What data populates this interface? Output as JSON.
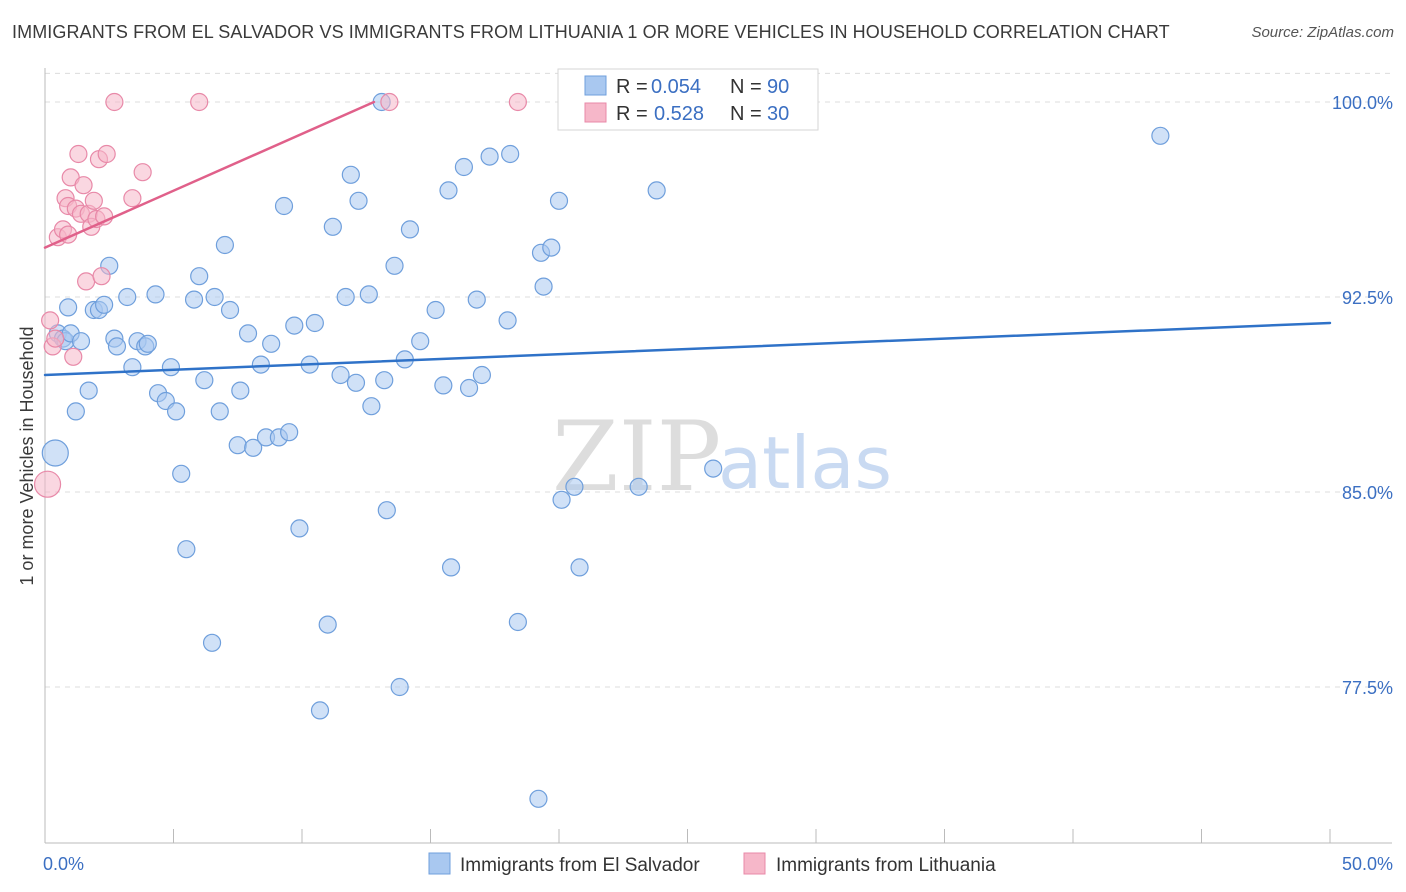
{
  "title": "IMMIGRANTS FROM EL SALVADOR VS IMMIGRANTS FROM LITHUANIA 1 OR MORE VEHICLES IN HOUSEHOLD CORRELATION CHART",
  "source": "Source: ZipAtlas.com",
  "watermark": {
    "zip": "ZIP",
    "atlas": "atlas"
  },
  "legend": {
    "rows": [
      {
        "r_label": "R =",
        "r_value": "0.054",
        "n_label": "N =",
        "n_value": "90"
      },
      {
        "r_label": "R =",
        "r_value": "0.528",
        "n_label": "N =",
        "n_value": "30"
      }
    ]
  },
  "chart_data": {
    "type": "scatter",
    "title": "IMMIGRANTS FROM EL SALVADOR VS IMMIGRANTS FROM LITHUANIA 1 OR MORE VEHICLES IN HOUSEHOLD CORRELATION CHART",
    "xlabel": "",
    "ylabel": "1 or more Vehicles in Household",
    "xlim": [
      0,
      50
    ],
    "ylim": [
      71.5,
      101.5
    ],
    "x_tick_labels": [
      {
        "value": 0,
        "label": "0.0%"
      },
      {
        "value": 50,
        "label": "50.0%"
      }
    ],
    "x_minor_ticks": [
      5,
      10,
      15,
      20,
      25,
      30,
      35,
      40,
      45
    ],
    "y_ticks": [
      {
        "value": 100,
        "label": "100.0%"
      },
      {
        "value": 92.5,
        "label": "92.5%"
      },
      {
        "value": 85,
        "label": "85.0%"
      },
      {
        "value": 77.5,
        "label": "77.5%"
      }
    ],
    "y_grid_top": 101.1,
    "grid": true,
    "legend_position": "top-center",
    "series": [
      {
        "name": "Immigrants from El Salvador",
        "color": "#a9c8f0",
        "edge_color": "#6f9fdc",
        "line_color": "#2f72c8",
        "R": 0.054,
        "N": 90,
        "trend": {
          "x": [
            0,
            50
          ],
          "y": [
            89.5,
            91.5
          ]
        },
        "points": [
          [
            0.4,
            86.5
          ],
          [
            0.5,
            91.1
          ],
          [
            0.7,
            90.9
          ],
          [
            0.8,
            90.8
          ],
          [
            0.9,
            92.1
          ],
          [
            1.0,
            91.1
          ],
          [
            1.2,
            88.1
          ],
          [
            1.4,
            90.8
          ],
          [
            1.7,
            88.9
          ],
          [
            1.9,
            92.0
          ],
          [
            2.1,
            92.0
          ],
          [
            2.3,
            92.2
          ],
          [
            2.5,
            93.7
          ],
          [
            2.7,
            90.9
          ],
          [
            2.8,
            90.6
          ],
          [
            3.2,
            92.5
          ],
          [
            3.4,
            89.8
          ],
          [
            3.6,
            90.8
          ],
          [
            3.9,
            90.6
          ],
          [
            4.0,
            90.7
          ],
          [
            4.3,
            92.6
          ],
          [
            4.4,
            88.8
          ],
          [
            4.7,
            88.5
          ],
          [
            4.9,
            89.8
          ],
          [
            5.1,
            88.1
          ],
          [
            5.3,
            85.7
          ],
          [
            5.5,
            82.8
          ],
          [
            5.8,
            92.4
          ],
          [
            6.0,
            93.3
          ],
          [
            6.2,
            89.3
          ],
          [
            6.5,
            79.2
          ],
          [
            6.6,
            92.5
          ],
          [
            6.8,
            88.1
          ],
          [
            7.0,
            94.5
          ],
          [
            7.2,
            92.0
          ],
          [
            7.5,
            86.8
          ],
          [
            7.6,
            88.9
          ],
          [
            7.9,
            91.1
          ],
          [
            8.1,
            86.7
          ],
          [
            8.4,
            89.9
          ],
          [
            8.6,
            87.1
          ],
          [
            8.8,
            90.7
          ],
          [
            9.1,
            87.1
          ],
          [
            9.3,
            96.0
          ],
          [
            9.5,
            87.3
          ],
          [
            9.7,
            91.4
          ],
          [
            9.9,
            83.6
          ],
          [
            10.3,
            89.9
          ],
          [
            10.5,
            91.5
          ],
          [
            10.7,
            76.6
          ],
          [
            11.0,
            79.9
          ],
          [
            11.2,
            95.2
          ],
          [
            11.5,
            89.5
          ],
          [
            11.7,
            92.5
          ],
          [
            11.9,
            97.2
          ],
          [
            12.1,
            89.2
          ],
          [
            12.2,
            96.2
          ],
          [
            12.6,
            92.6
          ],
          [
            12.7,
            88.3
          ],
          [
            13.2,
            89.3
          ],
          [
            13.1,
            100.0
          ],
          [
            13.3,
            84.3
          ],
          [
            13.6,
            93.7
          ],
          [
            13.8,
            77.5
          ],
          [
            14.0,
            90.1
          ],
          [
            14.2,
            95.1
          ],
          [
            14.6,
            90.8
          ],
          [
            15.2,
            92.0
          ],
          [
            15.5,
            89.1
          ],
          [
            15.7,
            96.6
          ],
          [
            15.8,
            82.1
          ],
          [
            16.3,
            97.5
          ],
          [
            16.5,
            89.0
          ],
          [
            16.8,
            92.4
          ],
          [
            17.0,
            89.5
          ],
          [
            17.3,
            97.9
          ],
          [
            18.0,
            91.6
          ],
          [
            18.1,
            98.0
          ],
          [
            18.4,
            80.0
          ],
          [
            19.3,
            94.2
          ],
          [
            19.2,
            73.2
          ],
          [
            19.4,
            92.9
          ],
          [
            19.7,
            94.4
          ],
          [
            20.0,
            96.2
          ],
          [
            20.1,
            84.7
          ],
          [
            20.6,
            85.2
          ],
          [
            20.8,
            82.1
          ],
          [
            23.1,
            85.2
          ],
          [
            23.8,
            96.6
          ],
          [
            26.0,
            85.9
          ],
          [
            43.4,
            98.7
          ]
        ]
      },
      {
        "name": "Immigrants from Lithuania",
        "color": "#f6b7c9",
        "edge_color": "#e889a8",
        "line_color": "#e0608a",
        "R": 0.528,
        "N": 30,
        "trend": {
          "x": [
            0,
            12.8
          ],
          "y": [
            94.4,
            100.0
          ]
        },
        "points": [
          [
            0.1,
            85.3
          ],
          [
            0.2,
            91.6
          ],
          [
            0.3,
            90.6
          ],
          [
            0.4,
            90.9
          ],
          [
            0.5,
            94.8
          ],
          [
            0.7,
            95.1
          ],
          [
            0.8,
            96.3
          ],
          [
            0.9,
            96.0
          ],
          [
            0.9,
            94.9
          ],
          [
            1.0,
            97.1
          ],
          [
            1.1,
            90.2
          ],
          [
            1.2,
            95.9
          ],
          [
            1.3,
            98.0
          ],
          [
            1.4,
            95.7
          ],
          [
            1.5,
            96.8
          ],
          [
            1.6,
            93.1
          ],
          [
            1.7,
            95.7
          ],
          [
            1.8,
            95.2
          ],
          [
            1.9,
            96.2
          ],
          [
            2.0,
            95.5
          ],
          [
            2.1,
            97.8
          ],
          [
            2.2,
            93.3
          ],
          [
            2.4,
            98.0
          ],
          [
            2.7,
            100.0
          ],
          [
            3.4,
            96.3
          ],
          [
            3.8,
            97.3
          ],
          [
            6.0,
            100.0
          ],
          [
            13.4,
            100.0
          ],
          [
            18.4,
            100.0
          ],
          [
            2.3,
            95.6
          ]
        ]
      }
    ]
  }
}
